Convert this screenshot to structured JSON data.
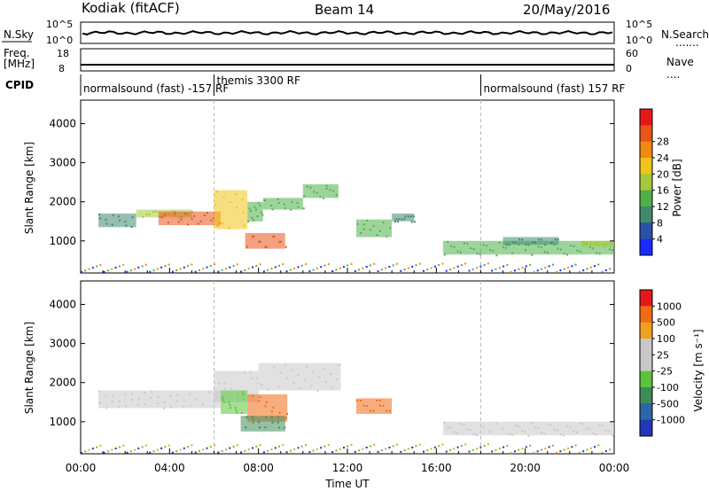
{
  "header": {
    "radar": "Kodiak (fitACF)",
    "beam": "Beam 14",
    "date": "20/May/2016"
  },
  "noise_panel": {
    "left_label": "N.Sky",
    "left_ticks": [
      "10^5",
      "10^0"
    ],
    "right_ticks": [
      "10^5",
      "10^0"
    ],
    "right_label": "N.Search",
    "right_legend": "......."
  },
  "freq_panel": {
    "left_label_line1": "Freq.",
    "left_label_line2": "[MHz]",
    "left_ticks": [
      "18",
      "8"
    ],
    "right_ticks": [
      "60",
      "0"
    ],
    "right_label": "Nave",
    "right_legend": "...."
  },
  "cpid": {
    "label": "CPID",
    "segments": [
      {
        "text": "normalsound (fast) -157 RF",
        "start_hour": 0,
        "end_hour": 6
      },
      {
        "text": "themis 3300 RF",
        "start_hour": 6,
        "end_hour": 18
      },
      {
        "text": "normalsound (fast) 157 RF",
        "start_hour": 18,
        "end_hour": 24
      }
    ]
  },
  "chart_data": [
    {
      "type": "heatmap",
      "panel": "power",
      "ylabel": "Slant Range [km]",
      "yticks": [
        1000,
        2000,
        3000,
        4000
      ],
      "ylim": [
        180,
        4600
      ],
      "xlim": [
        0,
        24
      ],
      "colorbar": {
        "label": "Power [dB]",
        "ticks": [
          "4",
          "8",
          "12",
          "16",
          "20",
          "24",
          "28"
        ],
        "colors": [
          "#1a2bff",
          "#2c4fa8",
          "#3f8a6e",
          "#4fb04a",
          "#a6c83a",
          "#f0c419",
          "#f08a12",
          "#e8541a",
          "#e4181c"
        ]
      },
      "regions": [
        {
          "x": [
            0.8,
            2.5
          ],
          "y": [
            1350,
            1700
          ],
          "level": 2
        },
        {
          "x": [
            2.5,
            5.0
          ],
          "y": [
            1600,
            1800
          ],
          "level": 4
        },
        {
          "x": [
            3.5,
            6.3
          ],
          "y": [
            1400,
            1750
          ],
          "level": 7
        },
        {
          "x": [
            6.0,
            7.5
          ],
          "y": [
            1300,
            2300
          ],
          "level": 5
        },
        {
          "x": [
            7.5,
            8.2
          ],
          "y": [
            1500,
            2000
          ],
          "level": 3
        },
        {
          "x": [
            8.2,
            10.0
          ],
          "y": [
            1800,
            2100
          ],
          "level": 3
        },
        {
          "x": [
            10.0,
            11.6
          ],
          "y": [
            2100,
            2450
          ],
          "level": 3
        },
        {
          "x": [
            7.4,
            9.2
          ],
          "y": [
            800,
            1200
          ],
          "level": 7
        },
        {
          "x": [
            12.4,
            14.0
          ],
          "y": [
            1100,
            1550
          ],
          "level": 3
        },
        {
          "x": [
            14.0,
            15.0
          ],
          "y": [
            1500,
            1700
          ],
          "level": 2
        },
        {
          "x": [
            16.3,
            24.0
          ],
          "y": [
            650,
            1000
          ],
          "level": 3
        },
        {
          "x": [
            19.0,
            21.5
          ],
          "y": [
            900,
            1100
          ],
          "level": 2
        },
        {
          "x": [
            22.5,
            24.0
          ],
          "y": [
            850,
            1000
          ],
          "level": 4
        }
      ]
    },
    {
      "type": "heatmap",
      "panel": "velocity",
      "ylabel": "Slant Range [km]",
      "xlabel": "Time UT",
      "yticks": [
        1000,
        2000,
        3000,
        4000
      ],
      "xticks": [
        "00:00",
        "04:00",
        "08:00",
        "12:00",
        "16:00",
        "20:00",
        "00:00"
      ],
      "ylim": [
        180,
        4600
      ],
      "xlim": [
        0,
        24
      ],
      "colorbar": {
        "label": "Velocity [m s⁻¹]",
        "ticks": [
          "1000",
          "500",
          "100",
          "25",
          "-25",
          "-100",
          "-500",
          "-1000"
        ],
        "colors": [
          "#2337b5",
          "#2b66a6",
          "#3f8a5a",
          "#5bc43a",
          "#c8c8c8",
          "#c8c8c8",
          "#f0a020",
          "#f06c14",
          "#e4181c"
        ]
      },
      "regions": [
        {
          "x": [
            0.8,
            6.3
          ],
          "y": [
            1350,
            1800
          ],
          "color": "#c8c8c8"
        },
        {
          "x": [
            6.0,
            8.0
          ],
          "y": [
            1500,
            2300
          ],
          "color": "#c8c8c8"
        },
        {
          "x": [
            8.0,
            11.7
          ],
          "y": [
            1800,
            2500
          ],
          "color": "#c8c8c8"
        },
        {
          "x": [
            6.3,
            7.5
          ],
          "y": [
            1200,
            1800
          ],
          "color": "#5bc43a"
        },
        {
          "x": [
            7.5,
            9.3
          ],
          "y": [
            1000,
            1700
          ],
          "color": "#f06c14"
        },
        {
          "x": [
            7.2,
            9.2
          ],
          "y": [
            750,
            1150
          ],
          "color": "#3f8a5a"
        },
        {
          "x": [
            12.4,
            14.0
          ],
          "y": [
            1200,
            1600
          ],
          "color": "#f06c14"
        },
        {
          "x": [
            16.3,
            24.0
          ],
          "y": [
            650,
            1000
          ],
          "color": "#c8c8c8"
        }
      ]
    }
  ]
}
